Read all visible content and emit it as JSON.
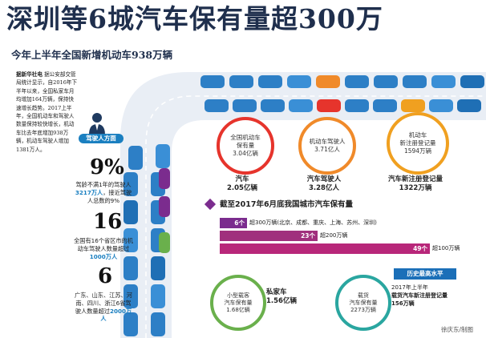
{
  "header": {
    "title": "深圳等6城汽车保有量超300万",
    "subtitle": "今年上半年全国新增机动车938万辆"
  },
  "intro": {
    "prefix": "据新华社电",
    "text": " 据公安部交管局统计显示，自2016年下半年以来，全国私家车月均增加164万辆，保持快速增长趋势。2017上半年，全国机动车和驾驶人数量保持较快增长，机动车比去年底增加938万辆，机动车驾驶人增加1381万人。"
  },
  "driver_section": {
    "badge": "驾驶人方面",
    "stat1": {
      "number": "9%",
      "text": "驾龄不满1年的驾驶人",
      "highlight": "3217万人",
      "text2": "，接近驾驶人总数的9%"
    },
    "stat2": {
      "number": "16",
      "text": "全国有16个省区市的机动车驾驶人数量超过",
      "highlight": "1000万人"
    },
    "stat3": {
      "number": "6",
      "text": "广东、山东、江苏、河南、四川、浙江6省驾驶人数量超过",
      "highlight": "2000万人"
    }
  },
  "bubbles": [
    {
      "label": "全国机动车\n保有量",
      "value": "3.04亿辆",
      "color": "#e6342c",
      "caption_label": "汽车",
      "caption_value": "2.05亿辆"
    },
    {
      "label": "机动车驾驶人",
      "value": "3.71亿人",
      "color": "#f08a2a",
      "caption_label": "汽车驾驶人",
      "caption_value": "3.28亿人"
    },
    {
      "label": "机动车\n新注册登记量",
      "value": "1594万辆",
      "color": "#f0a020",
      "caption_label": "汽车新注册登记量",
      "caption_value": "1322万辆"
    }
  ],
  "city_section": {
    "title": "截至2017年6月底我国城市汽车保有量",
    "rows": [
      {
        "count": "6个",
        "label": "超300万辆(北京、成都、重庆、上海、苏州、深圳)",
        "color": "#7b2c8e"
      },
      {
        "count": "23个",
        "label": "超200万辆",
        "color": "#a0307d"
      },
      {
        "count": "49个",
        "label": "超100万辆",
        "color": "#b8277a"
      }
    ]
  },
  "bottom": {
    "small_bubble": {
      "label": "小型载客\n汽车保有量",
      "value": "1.68亿辆",
      "color": "#6ab04c"
    },
    "private_car": {
      "label": "私家车",
      "value": "1.56亿辆"
    },
    "truck_bubble": {
      "label": "载货\n汽车保有量",
      "value": "2273万辆",
      "color": "#2aa6a0"
    },
    "record": {
      "badge": "历史最高水平",
      "line1": "2017年上半年",
      "line2": "载货汽车新注册登记量",
      "line3": "156万辆"
    }
  },
  "credit": "徐庆东/制图",
  "colors": {
    "accent_blue": "#1a7fc0",
    "title_navy": "#1f2f4d",
    "red": "#e6342c",
    "orange": "#f08a2a",
    "purple": "#7b2c8e",
    "green": "#6ab04c"
  }
}
